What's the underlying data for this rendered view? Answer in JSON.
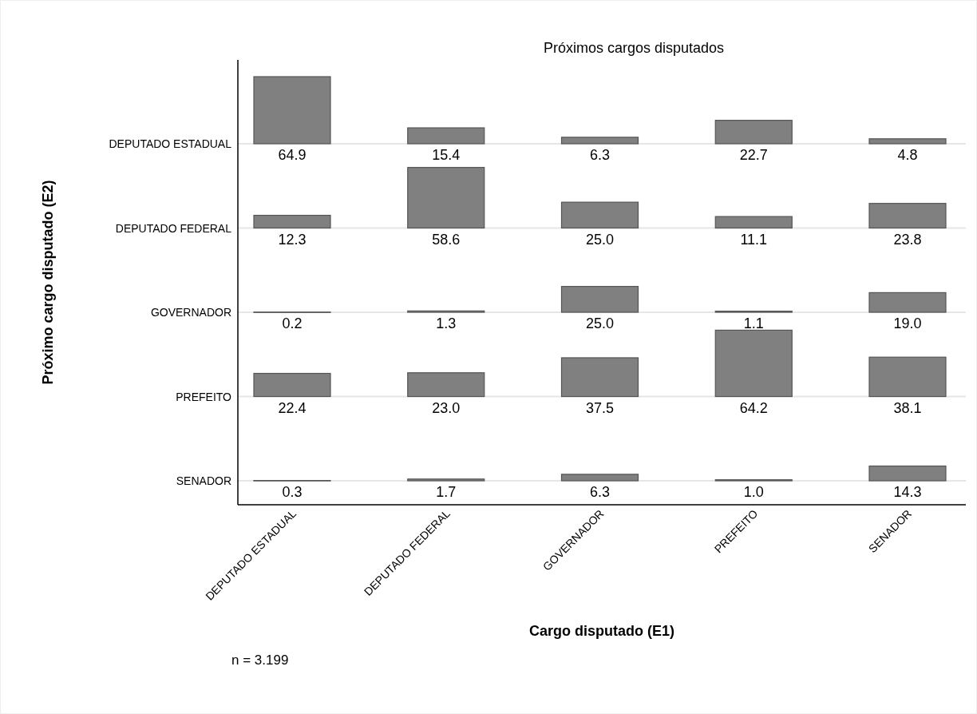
{
  "chart_data": {
    "type": "heatmap",
    "title": "Próximos cargos disputados",
    "xlabel": "Cargo disputado (E1)",
    "ylabel": "Próximo cargo disputado (E2)",
    "categories": [
      "DEPUTADO ESTADUAL",
      "DEPUTADO FEDERAL",
      "GOVERNADOR",
      "PREFEITO",
      "SENADOR"
    ],
    "y_categories": [
      "DEPUTADO ESTADUAL",
      "DEPUTADO FEDERAL",
      "GOVERNADOR",
      "PREFEITO",
      "SENADOR"
    ],
    "cells": [
      [
        64.9,
        15.4,
        6.3,
        22.7,
        4.8
      ],
      [
        12.3,
        58.6,
        25.0,
        11.1,
        23.8
      ],
      [
        0.2,
        1.3,
        25.0,
        1.1,
        19.0
      ],
      [
        22.4,
        23.0,
        37.5,
        64.2,
        38.1
      ],
      [
        0.3,
        1.7,
        6.3,
        1.0,
        14.3
      ]
    ],
    "cell_labels": [
      [
        "64.9",
        "15.4",
        "6.3",
        "22.7",
        "4.8"
      ],
      [
        "12.3",
        "58.6",
        "25.0",
        "11.1",
        "23.8"
      ],
      [
        "0.2",
        "1.3",
        "25.0",
        "1.1",
        "19.0"
      ],
      [
        "22.4",
        "23.0",
        "37.5",
        "64.2",
        "38.1"
      ],
      [
        "0.3",
        "1.7",
        "6.3",
        "1.0",
        "14.3"
      ]
    ],
    "color": "#808080",
    "grid": "y",
    "data_labels": true,
    "annotations": [
      "n = 3.199"
    ]
  }
}
